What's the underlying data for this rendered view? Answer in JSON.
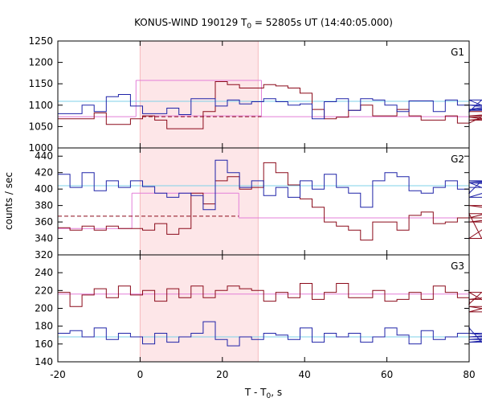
{
  "chart_data": {
    "type": "line",
    "title": "KONUS-WIND 190129 T",
    "title_sub": "0",
    "title_rest": " = 52805s UT (14:40:05.000)",
    "xlabel": "T - T",
    "xlabel_sub": "0",
    "xlabel_rest": ", s",
    "ylabel": "counts / sec",
    "xlim": [
      -20,
      80
    ],
    "x_ticks": [
      "-20",
      "0",
      "20",
      "40",
      "60",
      "80"
    ],
    "x_tick_values": [
      -20,
      0,
      20,
      40,
      60,
      80
    ],
    "shaded_interval": [
      0,
      28.7
    ],
    "colors": {
      "red_series": "#8b0a1a",
      "blue_series": "#1f23a8",
      "red_fit": "#e37fd8",
      "blue_fit": "#7fd2e8",
      "shade": "#fde6e8",
      "shade_edge": "#f5b9be"
    },
    "panels": [
      {
        "label": "G1",
        "ylim": [
          1000,
          1250
        ],
        "y_ticks": [
          "1000",
          "1050",
          "1100",
          "1150",
          "1200",
          "1250"
        ],
        "y_tick_values": [
          1000,
          1050,
          1100,
          1150,
          1200,
          1250
        ],
        "step": 2.944,
        "x_start": -20,
        "series": [
          {
            "color_key": "red_series",
            "values": [
              1068,
              1068,
              1068,
              1082,
              1055,
              1055,
              1068,
              1075,
              1065,
              1045,
              1045,
              1045,
              1085,
              1155,
              1148,
              1140,
              1140,
              1148,
              1145,
              1140,
              1128,
              1090,
              1068,
              1072,
              1088,
              1100,
              1075,
              1075,
              1090,
              1075,
              1065,
              1065,
              1075,
              1058,
              1058,
              1072,
              1065,
              1065,
              1075,
              1085
            ]
          },
          {
            "color_key": "blue_series",
            "values": [
              1080,
              1080,
              1100,
              1085,
              1120,
              1125,
              1098,
              1080,
              1080,
              1093,
              1078,
              1115,
              1115,
              1098,
              1112,
              1103,
              1108,
              1115,
              1108,
              1100,
              1103,
              1068,
              1108,
              1115,
              1088,
              1115,
              1112,
              1100,
              1085,
              1110,
              1110,
              1085,
              1112,
              1100,
              1085,
              1112,
              1088,
              1100,
              1090,
              1112
            ]
          }
        ],
        "fits": [
          {
            "color_key": "red_fit",
            "style": "solid",
            "segments": [
              [
                -20,
                -1,
                1073
              ],
              [
                -1,
                29.5,
                1158
              ],
              [
                29.5,
                80,
                1073
              ]
            ]
          },
          {
            "color_key": "red_fit",
            "style": "solid",
            "segments": [
              [
                0.5,
                29.5,
                1075
              ]
            ]
          },
          {
            "color_key": "red_series",
            "style": "dashed",
            "segments": [
              [
                0.5,
                29.5,
                1073
              ]
            ]
          },
          {
            "color_key": "blue_fit",
            "style": "solid",
            "segments": [
              [
                -20,
                80,
                1109
              ]
            ]
          }
        ]
      },
      {
        "label": "G2",
        "ylim": [
          320,
          450
        ],
        "y_ticks": [
          "320",
          "340",
          "360",
          "380",
          "400",
          "420",
          "440"
        ],
        "y_tick_values": [
          320,
          340,
          360,
          380,
          400,
          420,
          440
        ],
        "step": 2.944,
        "x_start": -20,
        "series": [
          {
            "color_key": "red_series",
            "values": [
              353,
              350,
              355,
              350,
              355,
              352,
              352,
              350,
              358,
              345,
              352,
              395,
              382,
              410,
              415,
              400,
              402,
              432,
              420,
              405,
              388,
              378,
              360,
              355,
              350,
              338,
              360,
              360,
              350,
              368,
              372,
              358,
              360,
              365,
              370,
              340,
              360,
              365,
              380,
              370
            ]
          },
          {
            "color_key": "blue_series",
            "values": [
              418,
              402,
              420,
              398,
              410,
              402,
              410,
              403,
              395,
              390,
              395,
              392,
              375,
              435,
              420,
              402,
              410,
              392,
              402,
              390,
              410,
              400,
              418,
              402,
              395,
              378,
              410,
              420,
              415,
              398,
              395,
              402,
              410,
              400,
              395,
              410,
              408,
              390,
              408,
              402
            ]
          }
        ],
        "fits": [
          {
            "color_key": "red_fit",
            "style": "solid",
            "segments": [
              [
                -20,
                -2,
                352
              ],
              [
                -2,
                24,
                395
              ],
              [
                24,
                80,
                365
              ]
            ]
          },
          {
            "color_key": "red_series",
            "style": "dashed",
            "segments": [
              [
                -20,
                24,
                367
              ]
            ]
          },
          {
            "color_key": "blue_fit",
            "style": "solid",
            "segments": [
              [
                -20,
                80,
                404
              ]
            ]
          }
        ]
      },
      {
        "label": "G3",
        "ylim": [
          140,
          260
        ],
        "y_ticks": [
          "140",
          "160",
          "180",
          "200",
          "220",
          "240"
        ],
        "y_tick_values": [
          140,
          160,
          180,
          200,
          220,
          240
        ],
        "step": 2.944,
        "x_start": -20,
        "series": [
          {
            "color_key": "red_series",
            "values": [
              218,
              202,
              215,
              222,
              212,
              225,
              215,
              220,
              208,
              222,
              212,
              225,
              212,
              220,
              225,
              222,
              220,
              208,
              218,
              212,
              228,
              210,
              218,
              228,
              212,
              212,
              220,
              208,
              210,
              218,
              210,
              225,
              218,
              212,
              205,
              218,
              202,
              196,
              210,
              218
            ]
          },
          {
            "color_key": "blue_series",
            "values": [
              172,
              175,
              168,
              178,
              165,
              172,
              168,
              160,
              172,
              162,
              168,
              172,
              185,
              165,
              158,
              168,
              165,
              172,
              170,
              165,
              178,
              162,
              172,
              168,
              172,
              162,
              168,
              178,
              170,
              160,
              175,
              165,
              168,
              172,
              178,
              162,
              165,
              168,
              172,
              165
            ]
          }
        ],
        "fits": [
          {
            "color_key": "red_fit",
            "style": "solid",
            "segments": [
              [
                -20,
                80,
                216
              ]
            ]
          },
          {
            "color_key": "blue_fit",
            "style": "solid",
            "segments": [
              [
                -20,
                80,
                168
              ]
            ]
          }
        ]
      }
    ]
  }
}
